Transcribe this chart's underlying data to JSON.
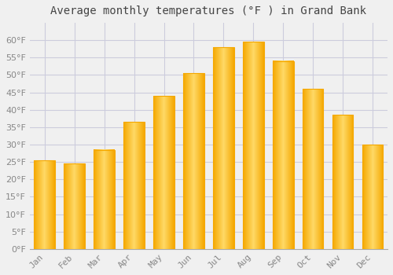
{
  "title": "Average monthly temperatures (°F ) in Grand Bank",
  "months": [
    "Jan",
    "Feb",
    "Mar",
    "Apr",
    "May",
    "Jun",
    "Jul",
    "Aug",
    "Sep",
    "Oct",
    "Nov",
    "Dec"
  ],
  "values": [
    25.5,
    24.5,
    28.5,
    36.5,
    44.0,
    50.5,
    58.0,
    59.5,
    54.0,
    46.0,
    38.5,
    30.0
  ],
  "bar_color_center": "#FFD966",
  "bar_color_edge": "#F5A800",
  "ylim": [
    0,
    65
  ],
  "yticks": [
    0,
    5,
    10,
    15,
    20,
    25,
    30,
    35,
    40,
    45,
    50,
    55,
    60
  ],
  "background_color": "#F0F0F0",
  "plot_bg_color": "#F0F0F0",
  "grid_color": "#CCCCDD",
  "title_fontsize": 10,
  "tick_fontsize": 8,
  "title_color": "#444444",
  "tick_color": "#888888"
}
